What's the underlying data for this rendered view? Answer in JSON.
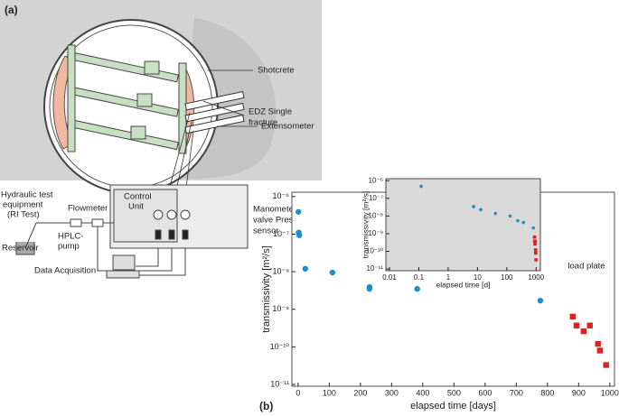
{
  "diagram": {
    "panel_label": "(a)",
    "shotcrete": "Shotcrete",
    "edz": [
      "EDZ Single",
      "fracture"
    ],
    "extensometer": "Extensometer",
    "hydraulic": [
      "Hydraulic test",
      "equipment",
      "(RI Test)"
    ],
    "flowmeter": "Flowmeter",
    "control_unit": [
      "Control",
      "Unit"
    ],
    "manometer": [
      "Manometer Control",
      "valve Pressure",
      "sensor"
    ],
    "hplc": [
      "HPLC-",
      "pump"
    ],
    "reservoir": "Reservoir",
    "data_acquisition": "Data Acquisition"
  },
  "panel_b_label": "(b)",
  "chart_data": [
    {
      "type": "scatter",
      "xlabel": "elapsed time [days]",
      "ylabel": "transmissivity [m²/s]",
      "xlim": [
        -20,
        1015
      ],
      "ylim": [
        9e-12,
        1.3e-06
      ],
      "ylog": true,
      "xticks": [
        0,
        100,
        200,
        300,
        400,
        500,
        600,
        700,
        800,
        900,
        1000
      ],
      "yticks": [
        {
          "value": 1e-11,
          "label": "10⁻¹¹"
        },
        {
          "value": 1e-10,
          "label": "10⁻¹⁰"
        },
        {
          "value": 1e-09,
          "label": "10⁻⁹"
        },
        {
          "value": 1e-08,
          "label": "10⁻⁸"
        },
        {
          "value": 1e-07,
          "label": "10⁻⁷"
        },
        {
          "value": 1e-06,
          "label": "10⁻⁶"
        }
      ],
      "annotation": "load plate",
      "series": [
        {
          "color": "#1a8fcf",
          "marker": "circle",
          "x": [
            1,
            2,
            4,
            23,
            110,
            229,
            229,
            382,
            777
          ],
          "values": [
            3.9e-07,
            1.1e-07,
            9.3e-08,
            1.2e-08,
            9.5e-09,
            3.9e-09,
            3.5e-09,
            3.5e-09,
            1.7e-09
          ]
        },
        {
          "color": "#e02020",
          "marker": "square",
          "x": [
            881,
            893,
            916,
            936,
            962,
            968,
            988
          ],
          "values": [
            6.4e-10,
            3.7e-10,
            2.6e-10,
            3.7e-10,
            1.2e-10,
            8e-11,
            3.3e-11
          ]
        }
      ]
    },
    {
      "type": "scatter",
      "xlabel": "elapsed time [d]",
      "ylabel": "transmissivity [m²/s]",
      "xlim": [
        0.0075,
        1400
      ],
      "ylim": [
        8e-12,
        1.3e-06
      ],
      "xlog": true,
      "ylog": true,
      "background": "#d9d9d9",
      "xticks": [
        0.01,
        0.1,
        1,
        10,
        100,
        1000
      ],
      "yticks": [
        {
          "value": 1e-11,
          "label": "10⁻¹¹"
        },
        {
          "value": 1e-10,
          "label": "10⁻¹⁰"
        },
        {
          "value": 1e-09,
          "label": "10⁻⁹"
        },
        {
          "value": 1e-08,
          "label": "10⁻⁸"
        },
        {
          "value": 1e-07,
          "label": "10⁻⁷"
        },
        {
          "value": 1e-06,
          "label": "10⁻⁶"
        }
      ],
      "series": [
        {
          "color": "#1a8fcf",
          "marker": "circle",
          "x": [
            0.12,
            7.4,
            13,
            41,
            130,
            237,
            370,
            810
          ],
          "values": [
            4.8e-07,
            3.4e-08,
            2.3e-08,
            1.4e-08,
            1e-08,
            5.4e-09,
            4.3e-09,
            2.1e-09
          ]
        },
        {
          "color": "#e02020",
          "marker": "square",
          "x": [
            881,
            893,
            916,
            936,
            962,
            968,
            988
          ],
          "values": [
            6.4e-10,
            3.7e-10,
            2.6e-10,
            3.7e-10,
            1.2e-10,
            8e-11,
            3.3e-11
          ]
        }
      ]
    }
  ]
}
